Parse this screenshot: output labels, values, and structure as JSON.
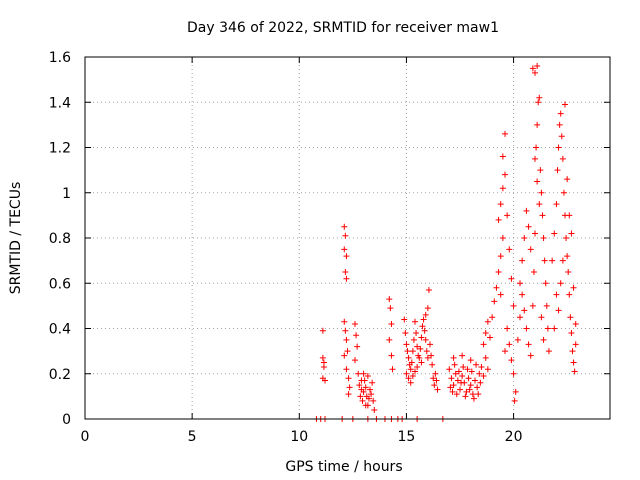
{
  "chart_data": {
    "type": "scatter",
    "title": "Day 346 of 2022, SRMTID for receiver maw1",
    "xlabel": "GPS time / hours",
    "ylabel": "SRMTID / TECUs",
    "xlim": [
      0,
      24.5
    ],
    "ylim": [
      0,
      1.6
    ],
    "xticks": [
      0,
      5,
      10,
      15,
      20
    ],
    "xtick_labels": [
      "0",
      "5",
      "10",
      "15",
      "20"
    ],
    "yticks": [
      0,
      0.2,
      0.4,
      0.6,
      0.8,
      1.0,
      1.2,
      1.4,
      1.6
    ],
    "ytick_labels": [
      "0",
      "0.2",
      "0.4",
      "0.6",
      "0.8",
      "1",
      "1.2",
      "1.4",
      "1.6"
    ],
    "grid": true,
    "marker": "+",
    "series": [
      {
        "name": "maw1",
        "color": "#ff0000",
        "points": [
          [
            10.8,
            0
          ],
          [
            11.0,
            0
          ],
          [
            11.2,
            0
          ],
          [
            12.0,
            0
          ],
          [
            12.5,
            0
          ],
          [
            13.2,
            0
          ],
          [
            13.6,
            0
          ],
          [
            14.0,
            0
          ],
          [
            14.3,
            0
          ],
          [
            14.6,
            0
          ],
          [
            14.8,
            0
          ],
          [
            15.5,
            0
          ],
          [
            16.7,
            0
          ],
          [
            11.1,
            0.39
          ],
          [
            11.1,
            0.27
          ],
          [
            11.15,
            0.25
          ],
          [
            11.1,
            0.18
          ],
          [
            11.2,
            0.17
          ],
          [
            11.15,
            0.23
          ],
          [
            12.1,
            0.85
          ],
          [
            12.15,
            0.81
          ],
          [
            12.1,
            0.75
          ],
          [
            12.2,
            0.72
          ],
          [
            12.15,
            0.65
          ],
          [
            12.2,
            0.62
          ],
          [
            12.1,
            0.43
          ],
          [
            12.15,
            0.39
          ],
          [
            12.2,
            0.35
          ],
          [
            12.1,
            0.28
          ],
          [
            12.25,
            0.3
          ],
          [
            12.2,
            0.22
          ],
          [
            12.3,
            0.18
          ],
          [
            12.35,
            0.14
          ],
          [
            12.3,
            0.11
          ],
          [
            12.6,
            0.42
          ],
          [
            12.65,
            0.37
          ],
          [
            12.7,
            0.32
          ],
          [
            12.6,
            0.26
          ],
          [
            12.75,
            0.2
          ],
          [
            12.8,
            0.15
          ],
          [
            12.85,
            0.1
          ],
          [
            12.9,
            0.13
          ],
          [
            12.95,
            0.08
          ],
          [
            13.0,
            0.12
          ],
          [
            13.05,
            0.17
          ],
          [
            13.1,
            0.14
          ],
          [
            13.15,
            0.1
          ],
          [
            13.2,
            0.06
          ],
          [
            13.25,
            0.09
          ],
          [
            13.3,
            0.13
          ],
          [
            13.35,
            0.11
          ],
          [
            13.4,
            0.16
          ],
          [
            13.45,
            0.08
          ],
          [
            13.5,
            0.04
          ],
          [
            13.0,
            0.2
          ],
          [
            12.9,
            0.17
          ],
          [
            13.2,
            0.19
          ],
          [
            13.1,
            0.06
          ],
          [
            14.2,
            0.53
          ],
          [
            14.25,
            0.49
          ],
          [
            14.3,
            0.42
          ],
          [
            14.2,
            0.35
          ],
          [
            14.3,
            0.28
          ],
          [
            14.35,
            0.22
          ],
          [
            14.9,
            0.44
          ],
          [
            14.95,
            0.38
          ],
          [
            15.0,
            0.33
          ],
          [
            15.05,
            0.3
          ],
          [
            15.1,
            0.27
          ],
          [
            15.15,
            0.24
          ],
          [
            15.2,
            0.22
          ],
          [
            15.25,
            0.25
          ],
          [
            15.3,
            0.3
          ],
          [
            15.35,
            0.35
          ],
          [
            15.4,
            0.43
          ],
          [
            15.45,
            0.38
          ],
          [
            15.5,
            0.32
          ],
          [
            15.55,
            0.28
          ],
          [
            15.0,
            0.2
          ],
          [
            15.1,
            0.18
          ],
          [
            15.2,
            0.16
          ],
          [
            15.3,
            0.19
          ],
          [
            15.4,
            0.21
          ],
          [
            15.5,
            0.23
          ],
          [
            15.6,
            0.27
          ],
          [
            15.65,
            0.31
          ],
          [
            15.7,
            0.36
          ],
          [
            15.75,
            0.41
          ],
          [
            15.8,
            0.44
          ],
          [
            15.85,
            0.39
          ],
          [
            15.9,
            0.35
          ],
          [
            15.95,
            0.3
          ],
          [
            16.0,
            0.27
          ],
          [
            16.05,
            0.57
          ],
          [
            16.0,
            0.49
          ],
          [
            16.1,
            0.33
          ],
          [
            16.15,
            0.28
          ],
          [
            16.2,
            0.24
          ],
          [
            16.25,
            0.18
          ],
          [
            16.3,
            0.15
          ],
          [
            16.35,
            0.2
          ],
          [
            16.4,
            0.17
          ],
          [
            16.45,
            0.13
          ],
          [
            15.9,
            0.46
          ],
          [
            15.7,
            0.25
          ],
          [
            17.0,
            0.22
          ],
          [
            17.1,
            0.18
          ],
          [
            17.2,
            0.15
          ],
          [
            17.3,
            0.2
          ],
          [
            17.4,
            0.17
          ],
          [
            17.5,
            0.13
          ],
          [
            17.6,
            0.19
          ],
          [
            17.7,
            0.16
          ],
          [
            17.8,
            0.12
          ],
          [
            17.9,
            0.18
          ],
          [
            18.0,
            0.15
          ],
          [
            18.1,
            0.11
          ],
          [
            18.2,
            0.17
          ],
          [
            18.3,
            0.14
          ],
          [
            18.4,
            0.2
          ],
          [
            17.05,
            0.14
          ],
          [
            17.15,
            0.12
          ],
          [
            17.25,
            0.24
          ],
          [
            17.35,
            0.11
          ],
          [
            17.45,
            0.21
          ],
          [
            17.55,
            0.16
          ],
          [
            17.65,
            0.23
          ],
          [
            17.75,
            0.1
          ],
          [
            17.85,
            0.22
          ],
          [
            17.95,
            0.13
          ],
          [
            18.05,
            0.21
          ],
          [
            18.15,
            0.09
          ],
          [
            18.25,
            0.24
          ],
          [
            18.35,
            0.11
          ],
          [
            18.45,
            0.16
          ],
          [
            17.2,
            0.27
          ],
          [
            17.6,
            0.28
          ],
          [
            18.0,
            0.26
          ],
          [
            18.5,
            0.23
          ],
          [
            18.6,
            0.19
          ],
          [
            18.7,
            0.27
          ],
          [
            18.8,
            0.22
          ],
          [
            18.6,
            0.33
          ],
          [
            18.7,
            0.38
          ],
          [
            18.8,
            0.43
          ],
          [
            18.9,
            0.36
          ],
          [
            19.0,
            0.45
          ],
          [
            19.1,
            0.52
          ],
          [
            19.2,
            0.58
          ],
          [
            19.3,
            0.65
          ],
          [
            19.4,
            0.72
          ],
          [
            19.5,
            0.8
          ],
          [
            19.3,
            0.88
          ],
          [
            19.4,
            0.95
          ],
          [
            19.5,
            1.02
          ],
          [
            19.6,
            1.08
          ],
          [
            19.5,
            1.16
          ],
          [
            19.6,
            1.26
          ],
          [
            19.7,
            0.9
          ],
          [
            19.8,
            0.75
          ],
          [
            19.9,
            0.62
          ],
          [
            20.0,
            0.5
          ],
          [
            19.7,
            0.4
          ],
          [
            19.8,
            0.33
          ],
          [
            19.9,
            0.26
          ],
          [
            20.0,
            0.2
          ],
          [
            20.1,
            0.12
          ],
          [
            20.05,
            0.08
          ],
          [
            19.6,
            0.3
          ],
          [
            19.4,
            0.55
          ],
          [
            20.2,
            0.35
          ],
          [
            20.3,
            0.45
          ],
          [
            20.3,
            0.6
          ],
          [
            20.4,
            0.7
          ],
          [
            20.5,
            0.8
          ],
          [
            20.6,
            0.92
          ],
          [
            20.7,
            0.85
          ],
          [
            20.8,
            0.75
          ],
          [
            20.4,
            0.55
          ],
          [
            20.5,
            0.48
          ],
          [
            20.6,
            0.4
          ],
          [
            20.7,
            0.33
          ],
          [
            20.8,
            0.28
          ],
          [
            20.9,
            0.5
          ],
          [
            21.0,
            1.15
          ],
          [
            21.05,
            1.2
          ],
          [
            21.1,
            1.3
          ],
          [
            21.15,
            1.4
          ],
          [
            20.9,
            1.55
          ],
          [
            21.0,
            1.53
          ],
          [
            21.1,
            1.56
          ],
          [
            21.2,
            1.42
          ],
          [
            21.25,
            1.1
          ],
          [
            21.3,
            1.0
          ],
          [
            21.35,
            0.9
          ],
          [
            21.4,
            0.8
          ],
          [
            21.45,
            0.7
          ],
          [
            21.5,
            0.6
          ],
          [
            21.55,
            0.5
          ],
          [
            21.6,
            0.4
          ],
          [
            21.65,
            0.3
          ],
          [
            21.1,
            1.05
          ],
          [
            21.2,
            0.95
          ],
          [
            21.0,
            0.82
          ],
          [
            20.95,
            0.65
          ],
          [
            21.3,
            0.45
          ],
          [
            21.4,
            0.35
          ],
          [
            21.8,
            0.7
          ],
          [
            21.9,
            0.82
          ],
          [
            22.0,
            0.95
          ],
          [
            22.05,
            1.1
          ],
          [
            22.1,
            1.2
          ],
          [
            22.15,
            1.3
          ],
          [
            22.2,
            1.35
          ],
          [
            22.25,
            1.25
          ],
          [
            22.3,
            1.15
          ],
          [
            22.35,
            1.0
          ],
          [
            22.4,
            0.9
          ],
          [
            22.45,
            0.8
          ],
          [
            22.5,
            0.72
          ],
          [
            22.55,
            0.65
          ],
          [
            22.6,
            0.55
          ],
          [
            22.65,
            0.45
          ],
          [
            22.7,
            0.38
          ],
          [
            22.75,
            0.3
          ],
          [
            22.8,
            0.25
          ],
          [
            22.85,
            0.21
          ],
          [
            22.4,
            1.39
          ],
          [
            22.5,
            1.06
          ],
          [
            22.6,
            0.9
          ],
          [
            22.7,
            0.82
          ],
          [
            22.8,
            0.58
          ],
          [
            22.9,
            0.42
          ],
          [
            22.9,
            0.33
          ],
          [
            22.0,
            0.55
          ],
          [
            22.1,
            0.48
          ],
          [
            22.2,
            0.6
          ],
          [
            21.9,
            0.4
          ],
          [
            22.3,
            0.7
          ]
        ]
      }
    ]
  }
}
